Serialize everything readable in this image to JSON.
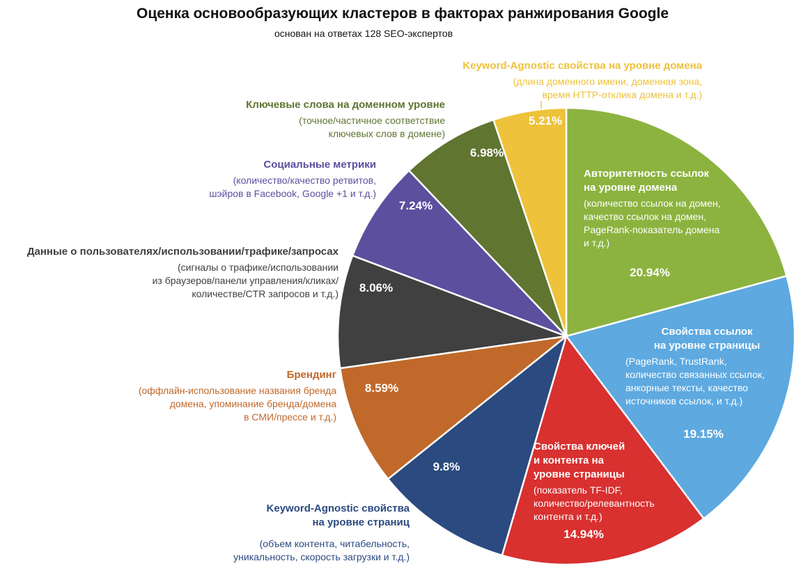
{
  "chart_data": {
    "type": "pie",
    "title": "Оценка основообразующих кластеров в факторах ранжирования Google",
    "subtitle": "основан на ответах 128 SEO-экспертов",
    "slices": [
      {
        "value": 20.94,
        "label": "20.94%",
        "color": "#8cb33f",
        "name_lines": [
          "Авторитетность ссылок",
          "на уровне домена"
        ],
        "desc_lines": [
          "(количество ссылок на домен,",
          "качество ссылок на домен,",
          "PageRank-показатель домена",
          "и т.д.)"
        ]
      },
      {
        "value": 19.15,
        "label": "19.15%",
        "color": "#5da9e0",
        "name_lines": [
          "Свойства ссылок",
          "на уровне страницы"
        ],
        "desc_lines": [
          "(PageRank, TrustRank,",
          "количество связанных ссылок,",
          "анкорные тексты, качество",
          "источников ссылок, и т.д.)"
        ]
      },
      {
        "value": 14.94,
        "label": "14.94%",
        "color": "#d93030",
        "name_lines": [
          "Свойства ключей",
          "и контента на",
          "уровне страницы"
        ],
        "desc_lines": [
          "(показатель TF-IDF,",
          "количество/релевантность",
          "контента и т.д.)"
        ]
      },
      {
        "value": 9.8,
        "label": "9.8%",
        "color": "#2b4a80",
        "name_lines": [
          "Keyword-Agnostic свойства",
          "на уровне страниц"
        ],
        "desc_lines": [
          "(объем контента, читабельность,",
          "уникальность, скорость загрузки и т.д.)"
        ]
      },
      {
        "value": 8.59,
        "label": "8.59%",
        "color": "#c0692a",
        "name_lines": [
          "Брендинг"
        ],
        "desc_lines": [
          "(оффлайн-использование названия бренда",
          "домена, упоминание бренда/домена",
          "в СМИ/прессе и т.д.)"
        ]
      },
      {
        "value": 8.06,
        "label": "8.06%",
        "color": "#404040",
        "name_lines": [
          "Данные о пользователях/использовании/трафике/запросах"
        ],
        "desc_lines": [
          "(сигналы о трафике/использовании",
          "из браузеров/панели управления/кликах/",
          "количестве/CTR запросов и т.д.)"
        ]
      },
      {
        "value": 7.24,
        "label": "7.24%",
        "color": "#5b4f9e",
        "name_lines": [
          "Социальные метрики"
        ],
        "desc_lines": [
          "(количество/качество ретвитов,",
          "шэйров в Facebook, Google +1 и т.д.)"
        ]
      },
      {
        "value": 6.98,
        "label": "6.98%",
        "color": "#5f7530",
        "name_lines": [
          "Ключевые слова на доменном уровне"
        ],
        "desc_lines": [
          "(точное/частичное соответствие",
          "ключевых слов в домене)"
        ]
      },
      {
        "value": 5.21,
        "label": "5.21%",
        "color": "#eec23a",
        "name_lines": [
          "Keyword-Agnostic свойства на уровне домена"
        ],
        "desc_lines": [
          "(длина доменного имени, доменная зона,",
          "время HTTP-отклика домена и т.д.)"
        ]
      }
    ]
  }
}
